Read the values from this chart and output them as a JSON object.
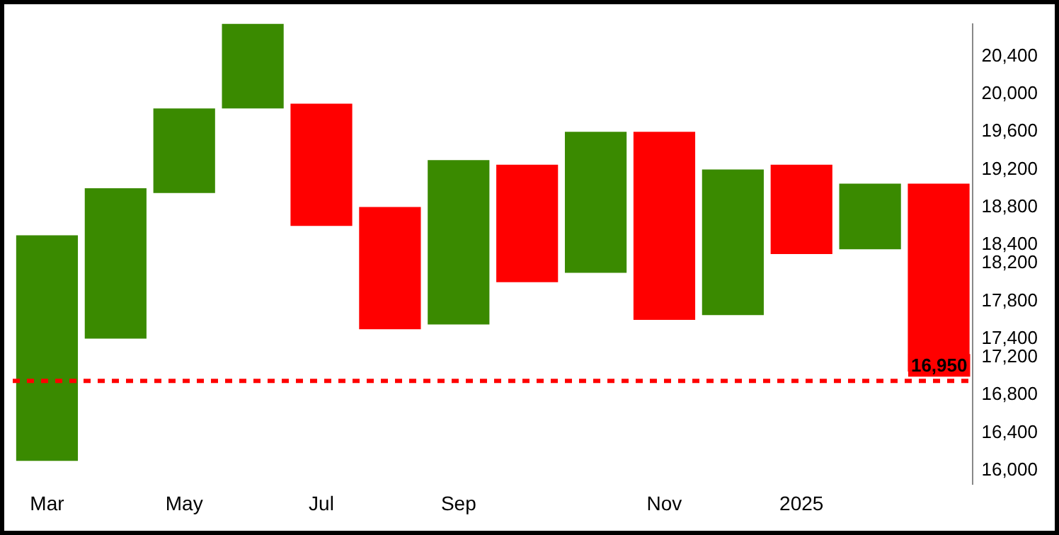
{
  "chart_data": {
    "type": "bar",
    "categories": [
      "Mar",
      null,
      "May",
      null,
      "Jul",
      null,
      "Sep",
      null,
      null,
      "Nov",
      null,
      "2025",
      null,
      null
    ],
    "series": [
      {
        "color": "#3a8a00",
        "base": [
          16100,
          17400,
          18950,
          19850,
          null,
          null,
          17550,
          null,
          18100,
          null,
          17650,
          null,
          18350,
          null
        ],
        "values": [
          2400,
          1600,
          900,
          900,
          null,
          null,
          1750,
          null,
          1500,
          null,
          1550,
          null,
          700,
          null
        ]
      },
      {
        "color": "#ff0000",
        "base": [
          null,
          null,
          null,
          null,
          18600,
          17500,
          null,
          18000,
          null,
          17600,
          null,
          18300,
          null,
          17050
        ],
        "values": [
          null,
          null,
          null,
          null,
          1300,
          1300,
          null,
          1250,
          null,
          2000,
          null,
          950,
          null,
          2000
        ]
      }
    ],
    "ylim": [
      15850,
      20750
    ],
    "yticks": [
      {
        "value": 16000,
        "label": "16,000"
      },
      {
        "value": 16400,
        "label": "16,400"
      },
      {
        "value": 16800,
        "label": "16,800"
      },
      {
        "value": 17200,
        "label": "17,200"
      },
      {
        "value": 17400,
        "label": "17,400"
      },
      {
        "value": 17800,
        "label": "17,800"
      },
      {
        "value": 18200,
        "label": "18,200"
      },
      {
        "value": 18400,
        "label": "18,400"
      },
      {
        "value": 18800,
        "label": "18,800"
      },
      {
        "value": 19200,
        "label": "19,200"
      },
      {
        "value": 19600,
        "label": "19,600"
      },
      {
        "value": 20000,
        "label": "20,000"
      },
      {
        "value": 20400,
        "label": "20,400"
      }
    ],
    "ref_lines": [
      {
        "axis": "y",
        "value": 16950,
        "label": "16,950",
        "color": "#ff0000",
        "line_style": "dashed"
      }
    ],
    "grid": false,
    "legend": false
  }
}
